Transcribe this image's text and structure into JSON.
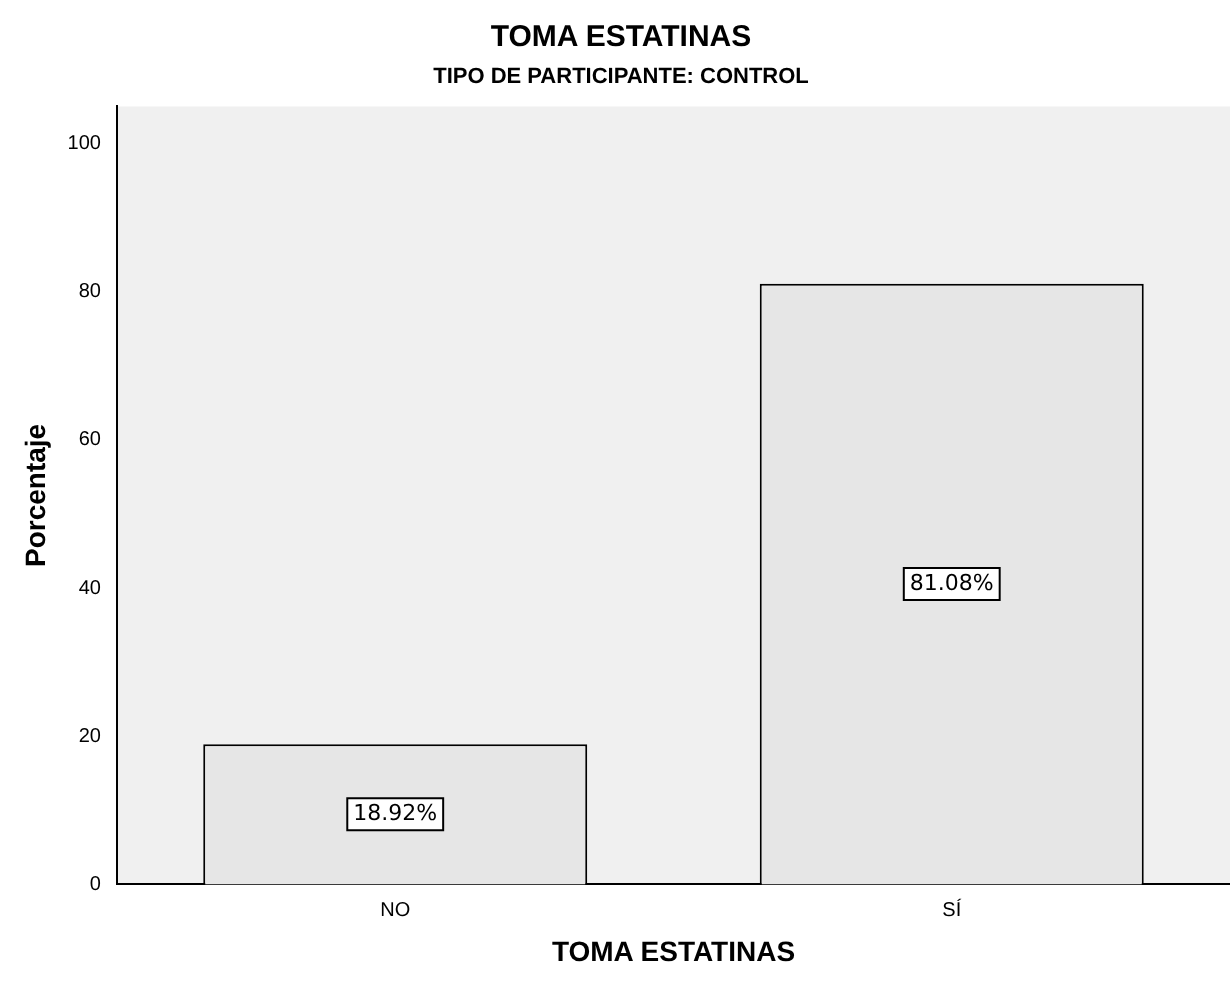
{
  "chart_data": {
    "type": "bar",
    "title": "TOMA ESTATINAS",
    "subtitle": "TIPO DE PARTICIPANTE: CONTROL",
    "xlabel": "TOMA ESTATINAS",
    "ylabel": "Porcentaje",
    "categories": [
      "NO",
      "SÍ"
    ],
    "values": [
      18.92,
      81.08
    ],
    "value_labels": [
      "18.92%",
      "81.08%"
    ],
    "color": "#e6e6e6",
    "ylim": [
      0,
      105
    ],
    "yticks": [
      0,
      20,
      40,
      60,
      80,
      100
    ],
    "grid": false,
    "legend": false
  }
}
